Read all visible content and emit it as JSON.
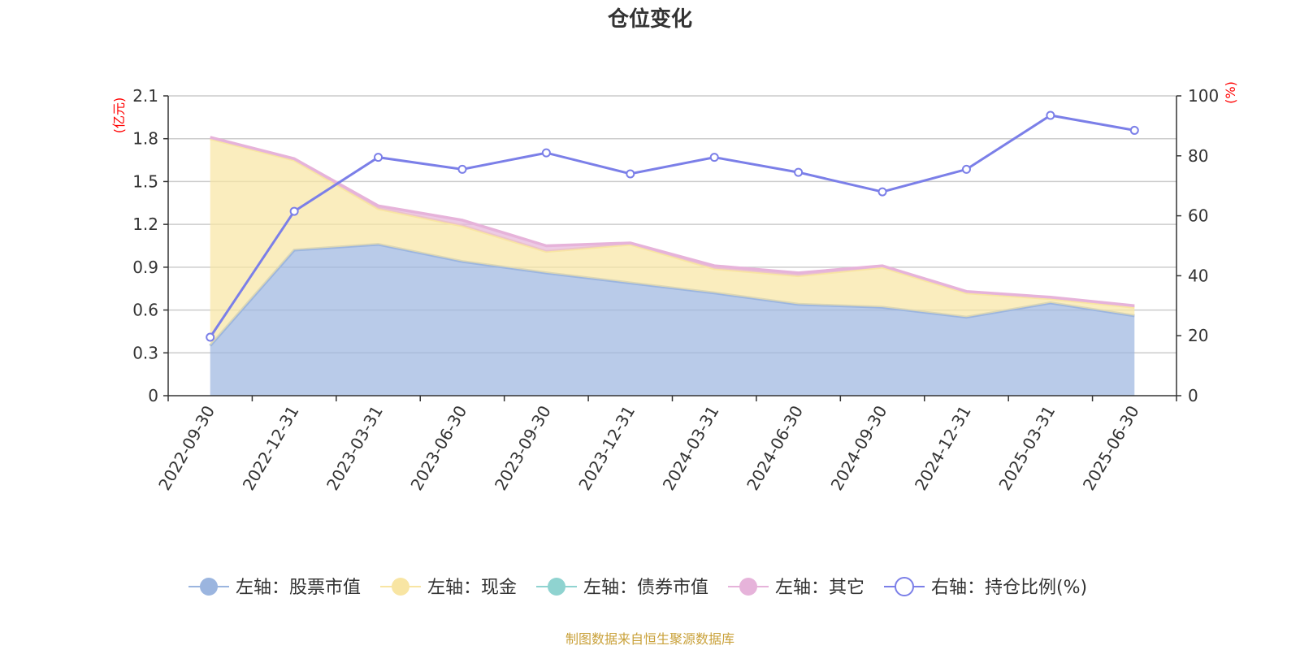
{
  "chart_data": {
    "type": "area",
    "title": "仓位变化",
    "categories": [
      "2022-09-30",
      "2022-12-31",
      "2023-03-31",
      "2023-06-30",
      "2023-09-30",
      "2023-12-31",
      "2024-03-31",
      "2024-06-30",
      "2024-09-30",
      "2024-12-31",
      "2025-03-31",
      "2025-06-30"
    ],
    "left_axis": {
      "unit": "(亿元)",
      "min": 0,
      "max": 2.1,
      "ticks": [
        "0",
        "0.3",
        "0.6",
        "0.9",
        "1.2",
        "1.5",
        "1.8",
        "2.1"
      ]
    },
    "right_axis": {
      "unit": "(%)",
      "min": 0,
      "max": 100,
      "ticks": [
        "0",
        "20",
        "40",
        "60",
        "80",
        "100"
      ]
    },
    "series": [
      {
        "name": "左轴：股票市值",
        "axis": "left",
        "type": "area",
        "stack": true,
        "color": "#9bb5df",
        "values": [
          0.35,
          1.02,
          1.06,
          0.94,
          0.86,
          0.79,
          0.72,
          0.64,
          0.62,
          0.55,
          0.65,
          0.56
        ]
      },
      {
        "name": "左轴：现金",
        "axis": "left",
        "type": "area",
        "stack": true,
        "color": "#f8e5a3",
        "values": [
          1.45,
          0.63,
          0.25,
          0.25,
          0.15,
          0.27,
          0.17,
          0.2,
          0.28,
          0.17,
          0.03,
          0.06
        ]
      },
      {
        "name": "左轴：债券市值",
        "axis": "left",
        "type": "area",
        "stack": true,
        "color": "#8fd3d0",
        "values": [
          0,
          0,
          0,
          0,
          0,
          0,
          0,
          0,
          0,
          0,
          0,
          0
        ]
      },
      {
        "name": "左轴：其它",
        "axis": "left",
        "type": "area",
        "stack": true,
        "color": "#e6b3da",
        "values": [
          0.01,
          0.01,
          0.02,
          0.04,
          0.04,
          0.01,
          0.02,
          0.02,
          0.01,
          0.01,
          0.01,
          0.01
        ]
      },
      {
        "name": "右轴：持仓比例(%)",
        "axis": "right",
        "type": "line",
        "color": "#7b7fe8",
        "values": [
          19.5,
          61.5,
          79.5,
          75.5,
          81,
          74,
          79.5,
          74.5,
          68,
          75.5,
          93.5,
          88.5
        ]
      }
    ],
    "grid": true,
    "legend_position": "bottom"
  },
  "source_note": "制图数据来自恒生聚源数据库"
}
